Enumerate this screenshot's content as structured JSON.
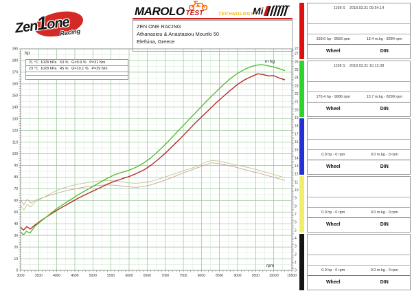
{
  "header": {
    "team_logo": {
      "part1": "Zen",
      "part2": "1",
      "part3": "one",
      "sub": "Racing"
    },
    "brand": {
      "title": "MAROLO",
      "suffix": "TEST",
      "tagline": "TECHNOLOGY",
      "mi_name": "Mi",
      "mi_systems": "SYSTEMS"
    },
    "customer": {
      "team": "ZEN ONE RACING",
      "name": "Athanasiou & Anastasiou Mouriki 50",
      "location": "Elefsina, Greece"
    }
  },
  "panel": {
    "wheel_label": "Wheel",
    "din_label": "DIN",
    "runs": [
      {
        "color": "#e01010",
        "title": "1198 S    2018.03.31 09.54.14",
        "hp_stat": "168.6 hp - 9556 rpm",
        "tq_stat": "13.4 m.kg - 8284 rpm"
      },
      {
        "color": "#2ed32e",
        "title": "1198 S    2018.03.31 10.12.38",
        "hp_stat": "176.4 hp - 9686 rpm",
        "tq_stat": "13.7 m.kg - 8299 rpm"
      },
      {
        "color": "#2431d6",
        "title": "",
        "hp_stat": "0.0 hp - 0 rpm",
        "tq_stat": "0.0 m.kg - 0 rpm"
      },
      {
        "color": "#f2ee6a",
        "title": "",
        "hp_stat": "0.0 hp - 0 rpm",
        "tq_stat": "0.0 m.kg - 0 rpm"
      },
      {
        "color": "#141414",
        "title": "",
        "hp_stat": "0.0 hp - 0 rpm",
        "tq_stat": "0.0 m.kg - 0 rpm"
      }
    ]
  },
  "chart_data": {
    "type": "line",
    "xlabel": "rpm",
    "ylabel_left": "hp",
    "ylabel_right": "m kg",
    "x_range": [
      3000,
      10500
    ],
    "y_left_range": [
      0,
      190
    ],
    "y_right_range": [
      0,
      27.6
    ],
    "x_ticks": [
      3000,
      3500,
      4000,
      4500,
      5000,
      5500,
      6000,
      6500,
      7000,
      7500,
      8000,
      8500,
      9000,
      9500,
      10000,
      10500
    ],
    "y_left_ticks": [
      0,
      10,
      20,
      30,
      40,
      50,
      60,
      70,
      80,
      90,
      100,
      110,
      120,
      130,
      140,
      150,
      160,
      170,
      180,
      190
    ],
    "y_right_ticks": [
      0,
      1,
      2,
      3,
      4,
      5,
      6,
      7,
      8,
      9,
      10,
      11,
      12,
      13,
      14,
      15,
      16,
      17,
      18,
      19,
      20,
      21,
      22,
      23,
      24,
      25,
      26,
      27,
      27.6
    ],
    "grid": {
      "minor": "#d3e8d0",
      "major": "#93c493"
    },
    "conditions": [
      "21 °C  1028 hPa   53 %   G=9.9 %   P=31 Nm",
      "23 °C  1028 hPa   45 %   G=10.1 %   P=29 Nm"
    ],
    "series": [
      {
        "name": "torque-curve-run1",
        "axis": "right",
        "color": "#cf9f9f",
        "width": 0.9,
        "points": [
          [
            3000,
            8.8
          ],
          [
            3090,
            8.15
          ],
          [
            3180,
            8.85
          ],
          [
            3290,
            8.4
          ],
          [
            3420,
            8.75
          ],
          [
            3600,
            9.05
          ],
          [
            3800,
            9.35
          ],
          [
            4000,
            9.6
          ],
          [
            4200,
            9.85
          ],
          [
            4400,
            10.05
          ],
          [
            4600,
            10.25
          ],
          [
            4800,
            10.4
          ],
          [
            5000,
            10.5
          ],
          [
            5200,
            10.6
          ],
          [
            5400,
            10.65
          ],
          [
            5600,
            10.6
          ],
          [
            5800,
            10.5
          ],
          [
            6000,
            10.4
          ],
          [
            6200,
            10.35
          ],
          [
            6400,
            10.45
          ],
          [
            6600,
            10.65
          ],
          [
            6800,
            10.95
          ],
          [
            7000,
            11.25
          ],
          [
            7200,
            11.6
          ],
          [
            7400,
            11.95
          ],
          [
            7600,
            12.3
          ],
          [
            7800,
            12.65
          ],
          [
            8000,
            12.95
          ],
          [
            8150,
            13.2
          ],
          [
            8284,
            13.4
          ],
          [
            8450,
            13.32
          ],
          [
            8600,
            13.2
          ],
          [
            8800,
            13.0
          ],
          [
            9000,
            12.8
          ],
          [
            9200,
            12.55
          ],
          [
            9400,
            12.3
          ],
          [
            9600,
            12.1
          ],
          [
            9800,
            11.85
          ],
          [
            10000,
            11.6
          ],
          [
            10150,
            11.4
          ],
          [
            10300,
            11.2
          ]
        ]
      },
      {
        "name": "torque-curve-run2",
        "axis": "right",
        "color": "#b9cc8a",
        "width": 0.9,
        "points": [
          [
            3000,
            8.1
          ],
          [
            3090,
            7.5
          ],
          [
            3180,
            8.2
          ],
          [
            3280,
            7.9
          ],
          [
            3400,
            8.5
          ],
          [
            3600,
            9.0
          ],
          [
            3800,
            9.5
          ],
          [
            4000,
            9.95
          ],
          [
            4200,
            10.3
          ],
          [
            4400,
            10.55
          ],
          [
            4600,
            10.75
          ],
          [
            4800,
            10.9
          ],
          [
            5000,
            11.05
          ],
          [
            5200,
            11.15
          ],
          [
            5400,
            11.2
          ],
          [
            5600,
            11.15
          ],
          [
            5800,
            11.05
          ],
          [
            6000,
            10.9
          ],
          [
            6200,
            10.85
          ],
          [
            6400,
            10.95
          ],
          [
            6600,
            11.1
          ],
          [
            6800,
            11.35
          ],
          [
            7000,
            11.65
          ],
          [
            7200,
            11.95
          ],
          [
            7400,
            12.25
          ],
          [
            7600,
            12.55
          ],
          [
            7800,
            12.85
          ],
          [
            8000,
            13.2
          ],
          [
            8150,
            13.55
          ],
          [
            8299,
            13.7
          ],
          [
            8450,
            13.62
          ],
          [
            8600,
            13.5
          ],
          [
            8800,
            13.3
          ],
          [
            9000,
            13.1
          ],
          [
            9200,
            12.9
          ],
          [
            9400,
            12.7
          ],
          [
            9600,
            12.45
          ],
          [
            9800,
            12.2
          ],
          [
            10000,
            11.95
          ],
          [
            10150,
            11.75
          ],
          [
            10300,
            11.55
          ]
        ]
      },
      {
        "name": "power-curve-run1",
        "axis": "left",
        "color": "#b22a2a",
        "width": 1.4,
        "points": [
          [
            3000,
            37
          ],
          [
            3080,
            34.5
          ],
          [
            3170,
            37.5
          ],
          [
            3270,
            35.5
          ],
          [
            3400,
            39
          ],
          [
            3600,
            43.5
          ],
          [
            3800,
            47.5
          ],
          [
            4000,
            51.5
          ],
          [
            4200,
            55
          ],
          [
            4400,
            58.5
          ],
          [
            4600,
            62
          ],
          [
            4800,
            65
          ],
          [
            5000,
            68
          ],
          [
            5200,
            71
          ],
          [
            5400,
            74
          ],
          [
            5600,
            76.5
          ],
          [
            5800,
            78.5
          ],
          [
            6000,
            80.5
          ],
          [
            6200,
            83
          ],
          [
            6400,
            86
          ],
          [
            6600,
            90
          ],
          [
            6800,
            95
          ],
          [
            7000,
            100.5
          ],
          [
            7200,
            106.5
          ],
          [
            7400,
            112.5
          ],
          [
            7600,
            119
          ],
          [
            7800,
            125.5
          ],
          [
            8000,
            131.5
          ],
          [
            8200,
            137.5
          ],
          [
            8400,
            143.5
          ],
          [
            8600,
            149
          ],
          [
            8800,
            154.5
          ],
          [
            9000,
            159.5
          ],
          [
            9200,
            163.5
          ],
          [
            9400,
            166.5
          ],
          [
            9556,
            168.6
          ],
          [
            9700,
            168
          ],
          [
            9850,
            166.8
          ],
          [
            10000,
            167
          ],
          [
            10150,
            165
          ],
          [
            10300,
            163.5
          ]
        ]
      },
      {
        "name": "power-curve-run2",
        "axis": "left",
        "color": "#5cbb36",
        "width": 1.4,
        "points": [
          [
            3000,
            33
          ],
          [
            3080,
            30.5
          ],
          [
            3160,
            33.5
          ],
          [
            3260,
            32
          ],
          [
            3400,
            38
          ],
          [
            3600,
            43
          ],
          [
            3800,
            48
          ],
          [
            4000,
            53
          ],
          [
            4200,
            57
          ],
          [
            4400,
            61
          ],
          [
            4600,
            65
          ],
          [
            4800,
            68.5
          ],
          [
            5000,
            72
          ],
          [
            5200,
            75.5
          ],
          [
            5400,
            79
          ],
          [
            5600,
            82
          ],
          [
            5800,
            84
          ],
          [
            6000,
            86
          ],
          [
            6200,
            88.5
          ],
          [
            6400,
            92
          ],
          [
            6600,
            96.5
          ],
          [
            6800,
            102
          ],
          [
            7000,
            108
          ],
          [
            7200,
            114.5
          ],
          [
            7400,
            121
          ],
          [
            7600,
            127.5
          ],
          [
            7800,
            134
          ],
          [
            8000,
            140.5
          ],
          [
            8200,
            147
          ],
          [
            8400,
            153
          ],
          [
            8600,
            159
          ],
          [
            8800,
            164.5
          ],
          [
            9000,
            169
          ],
          [
            9200,
            172.5
          ],
          [
            9400,
            175
          ],
          [
            9550,
            176.2
          ],
          [
            9686,
            176.4
          ],
          [
            9850,
            175.4
          ],
          [
            10000,
            174.4
          ],
          [
            10150,
            173
          ],
          [
            10300,
            171.5
          ]
        ]
      }
    ]
  }
}
